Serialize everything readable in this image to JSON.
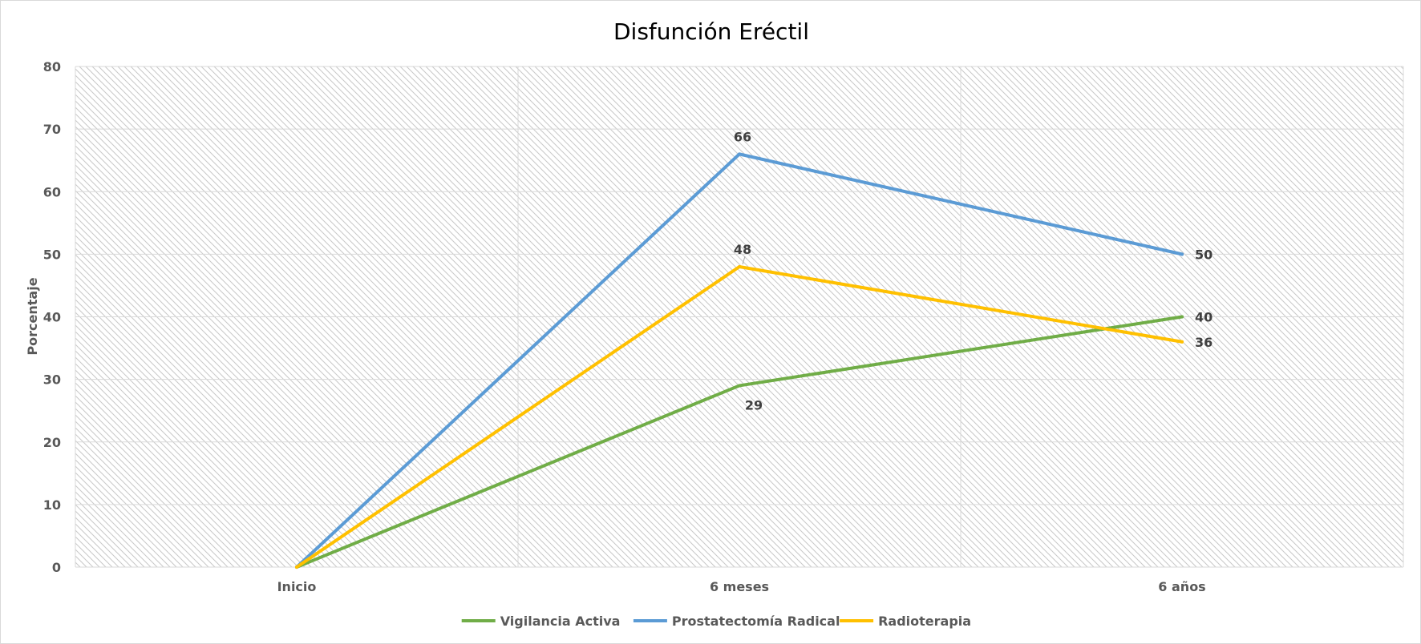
{
  "chart_data": {
    "type": "line",
    "title": "Disfunción Eréctil",
    "xlabel": "",
    "ylabel": "Porcentaje",
    "categories": [
      "Inicio",
      "6 meses",
      "6 años"
    ],
    "ylim": [
      0,
      80
    ],
    "yticks": [
      0,
      10,
      20,
      30,
      40,
      50,
      60,
      70,
      80
    ],
    "grid": true,
    "legend_position": "bottom",
    "series": [
      {
        "name": "Vigilancia Activa",
        "color": "#70ad47",
        "values": [
          0,
          29,
          40
        ],
        "data_labels": [
          "",
          "29",
          "40"
        ],
        "label_position": [
          "none",
          "below",
          "right"
        ]
      },
      {
        "name": "Prostatectomía Radical",
        "color": "#5b9bd5",
        "values": [
          0,
          66,
          50
        ],
        "data_labels": [
          "",
          "66",
          "50"
        ],
        "label_position": [
          "none",
          "above",
          "right"
        ]
      },
      {
        "name": "Radioterapia",
        "color": "#ffc000",
        "values": [
          0,
          48,
          36
        ],
        "data_labels": [
          "",
          "48",
          "36"
        ],
        "label_position": [
          "none",
          "above",
          "right"
        ]
      }
    ]
  }
}
